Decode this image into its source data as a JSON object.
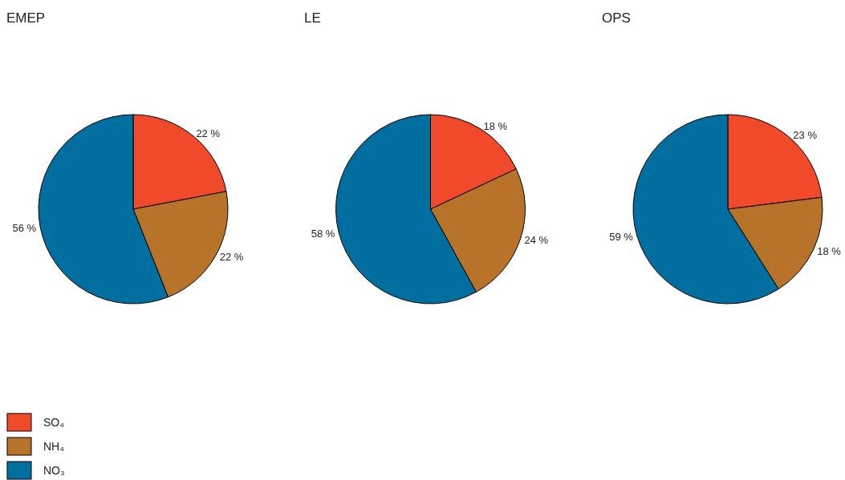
{
  "chart_data": [
    {
      "type": "pie",
      "title": "EMEP",
      "categories": [
        "SO₄",
        "NH₄",
        "NO₃"
      ],
      "values": [
        22,
        22,
        56
      ],
      "colors": [
        "#f04a2b",
        "#b8732a",
        "#006fa0"
      ],
      "value_labels": [
        "22 %",
        "22 %",
        "56 %"
      ],
      "legend": "bottom left"
    },
    {
      "type": "pie",
      "title": "LE",
      "values": [
        18,
        24,
        58
      ],
      "colors": [
        "#f04a2b",
        "#b8732a",
        "#006fa0"
      ],
      "value_labels": [
        "18 %",
        "24 %",
        "58 %"
      ]
    },
    {
      "type": "pie",
      "title": "OPS",
      "values": [
        23,
        18,
        59
      ],
      "colors": [
        "#f04a2b",
        "#b8732a",
        "#006fa0"
      ],
      "value_labels": [
        "23 %",
        "18 %",
        "59 %"
      ]
    }
  ]
}
